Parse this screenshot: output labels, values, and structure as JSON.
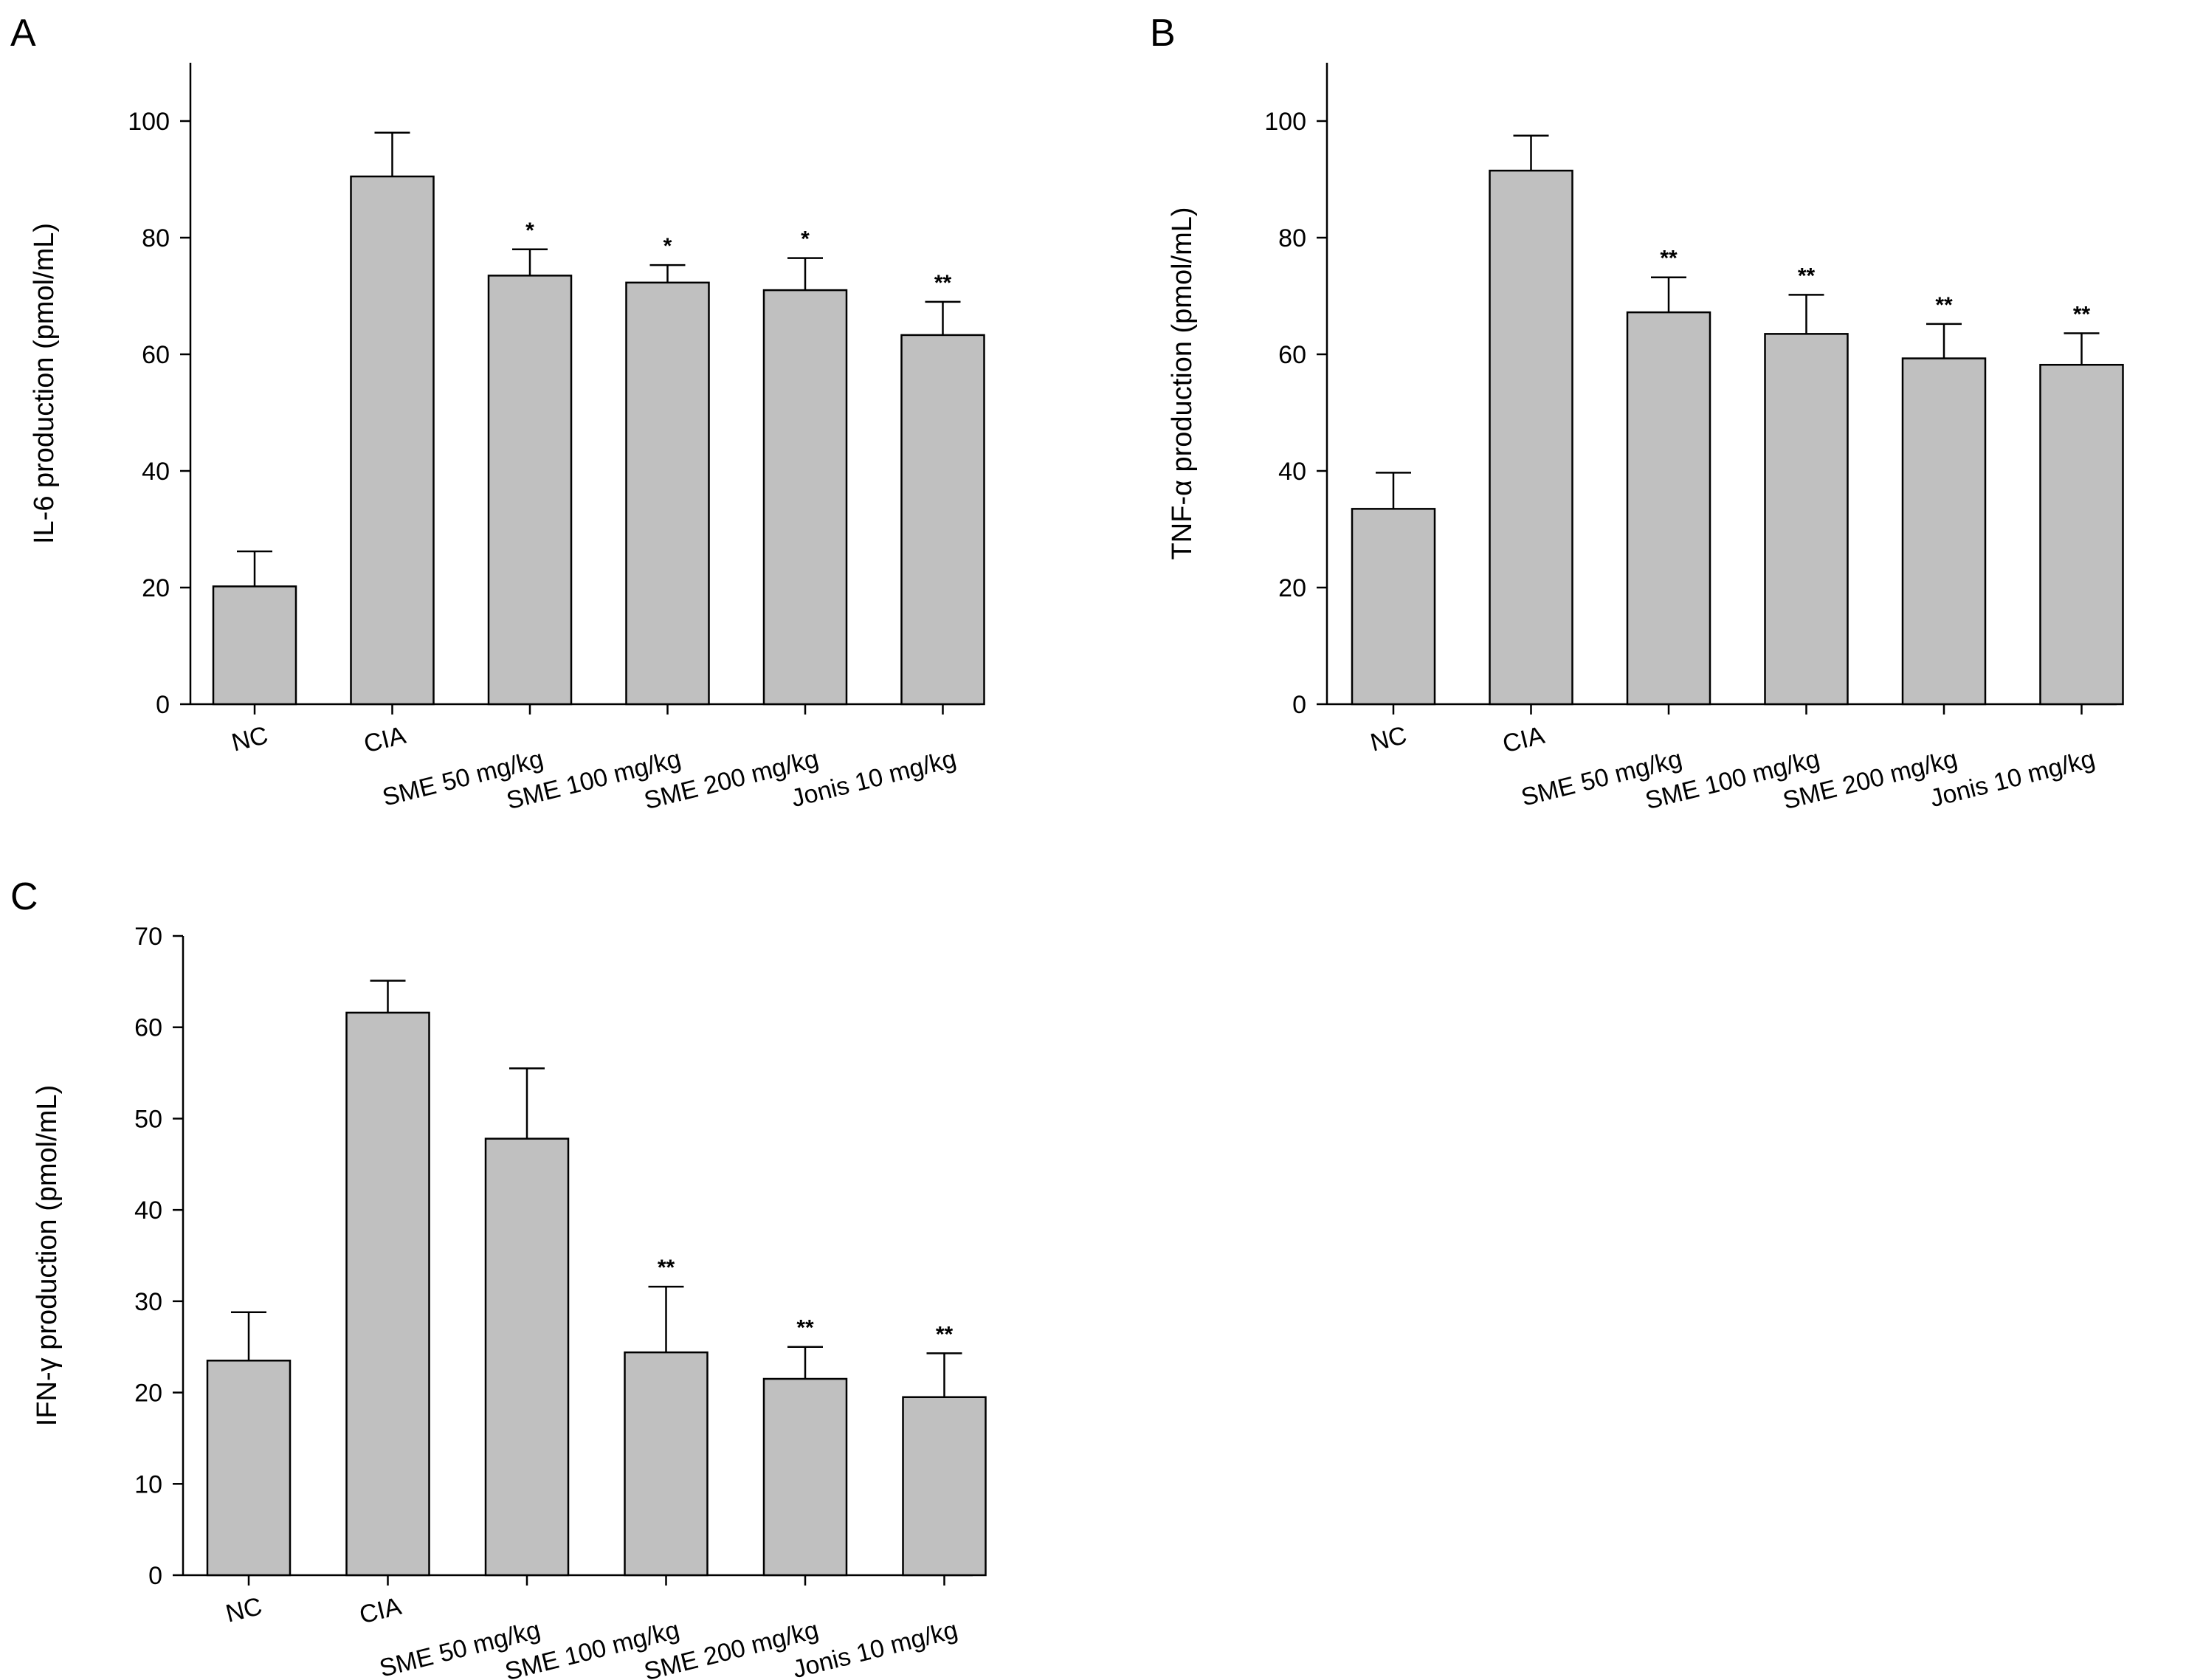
{
  "chart_data": [
    {
      "id": "A",
      "panel_label": "A",
      "type": "bar",
      "ylabel": "IL-6 production (pmol/mL)",
      "ylim": [
        0,
        110
      ],
      "yticks": [
        "0",
        "20",
        "40",
        "60",
        "80",
        "100"
      ],
      "categories": [
        "NC",
        "CIA",
        "SME 50 mg/kg",
        "SME 100 mg/kg",
        "SME 200 mg/kg",
        "Jonis 10 mg/kg"
      ],
      "values": [
        20.2,
        90.5,
        73.5,
        72.3,
        71.0,
        63.3
      ],
      "errors": [
        6.0,
        7.5,
        4.5,
        3.0,
        5.5,
        5.7
      ],
      "significance": [
        "",
        "",
        "*",
        "*",
        "*",
        "**"
      ]
    },
    {
      "id": "B",
      "panel_label": "B",
      "type": "bar",
      "ylabel": "TNF-α production (pmol/mL)",
      "ylim": [
        0,
        110
      ],
      "yticks": [
        "0",
        "20",
        "40",
        "60",
        "80",
        "100"
      ],
      "categories": [
        "NC",
        "CIA",
        "SME 50 mg/kg",
        "SME 100 mg/kg",
        "SME 200 mg/kg",
        "Jonis 10 mg/kg"
      ],
      "values": [
        33.5,
        91.5,
        67.2,
        63.5,
        59.3,
        58.2
      ],
      "errors": [
        6.2,
        6.0,
        6.0,
        6.7,
        5.9,
        5.4
      ],
      "significance": [
        "",
        "",
        "**",
        "**",
        "**",
        "**"
      ]
    },
    {
      "id": "C",
      "panel_label": "C",
      "type": "bar",
      "ylabel": "IFN-γ production (pmol/mL)",
      "ylim": [
        0,
        70
      ],
      "yticks": [
        "0",
        "10",
        "20",
        "30",
        "40",
        "50",
        "60",
        "70"
      ],
      "categories": [
        "NC",
        "CIA",
        "SME 50 mg/kg",
        "SME 100 mg/kg",
        "SME 200 mg/kg",
        "Jonis 10 mg/kg"
      ],
      "values": [
        23.5,
        61.6,
        47.8,
        24.4,
        21.5,
        19.5
      ],
      "errors": [
        5.3,
        3.5,
        7.7,
        7.2,
        3.5,
        4.8
      ],
      "significance": [
        "",
        "",
        "",
        "**",
        "**",
        "**"
      ]
    }
  ]
}
